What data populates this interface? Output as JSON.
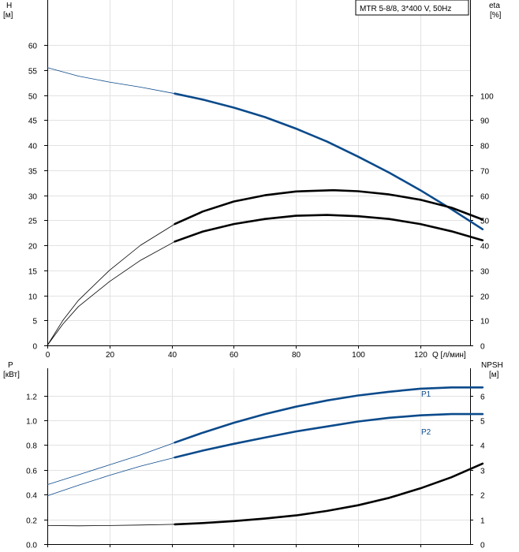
{
  "chart_data": [
    {
      "type": "line",
      "legend_text": "MTR 5-8/8, 3*400 V, 50Hz",
      "legend_placement": "top-right",
      "grid": true,
      "x_axis": {
        "label": "Q [л/мин]",
        "ticks": [
          "0",
          "20",
          "40",
          "60",
          "80",
          "100",
          "120"
        ],
        "range": [
          0,
          136
        ]
      },
      "y_left": {
        "label_line1": "H",
        "label_line2": "[м]",
        "ticks": [
          "0",
          "5",
          "10",
          "15",
          "20",
          "25",
          "30",
          "35",
          "40",
          "45",
          "50",
          "55",
          "60"
        ],
        "range": [
          0,
          69
        ]
      },
      "y_right": {
        "label_line1": "eta",
        "label_line2": "[%]",
        "ticks": [
          "0",
          "10",
          "20",
          "30",
          "40",
          "50",
          "60",
          "70",
          "80",
          "90",
          "100"
        ],
        "range": [
          0,
          138
        ]
      },
      "series": [
        {
          "axis": "left",
          "color": "#0b4a8b",
          "thin_to": 41,
          "x": [
            0,
            10,
            20,
            30,
            41,
            50,
            60,
            70,
            80,
            90,
            100,
            110,
            120,
            130,
            140
          ],
          "y": [
            55.5,
            53.8,
            52.6,
            51.6,
            50.3,
            49.1,
            47.5,
            45.6,
            43.3,
            40.7,
            37.7,
            34.5,
            31.0,
            27.2,
            23.2
          ]
        },
        {
          "axis": "right",
          "color": "#000000",
          "thin_to": 41,
          "x": [
            0,
            5,
            10,
            20,
            30,
            41,
            50,
            60,
            70,
            80,
            92,
            100,
            110,
            120,
            130,
            140
          ],
          "y": [
            0,
            10,
            18,
            30,
            40,
            48.5,
            53.5,
            57.5,
            60,
            61.5,
            62,
            61.6,
            60.3,
            58.2,
            55,
            50.3
          ]
        },
        {
          "axis": "right",
          "color": "#000000",
          "thin_to": 41,
          "x": [
            0,
            5,
            10,
            20,
            30,
            41,
            50,
            60,
            70,
            80,
            90,
            100,
            110,
            120,
            130,
            140
          ],
          "y": [
            0,
            8.5,
            15.5,
            25.5,
            34,
            41.5,
            45.5,
            48.5,
            50.5,
            51.8,
            52.1,
            51.6,
            50.5,
            48.5,
            45.6,
            42
          ]
        }
      ]
    },
    {
      "type": "line",
      "grid": true,
      "y_left": {
        "label_line1": "P",
        "label_line2": "[кВт]",
        "ticks": [
          "0.0",
          "0.2",
          "0.4",
          "0.6",
          "0.8",
          "1.0",
          "1.2"
        ],
        "range": [
          0,
          1.42
        ]
      },
      "y_right": {
        "label_line1": "NPSH",
        "label_line2": "[м]",
        "ticks": [
          "0",
          "1",
          "2",
          "3",
          "4",
          "5",
          "6"
        ],
        "range": [
          0,
          7.1
        ]
      },
      "series": [
        {
          "name": "P1",
          "axis": "left",
          "color": "#0b4a8b",
          "thin_to": 41,
          "x": [
            0,
            10,
            20,
            30,
            41,
            50,
            60,
            70,
            80,
            90,
            100,
            110,
            120,
            130,
            140
          ],
          "y": [
            0.48,
            0.56,
            0.64,
            0.72,
            0.82,
            0.9,
            0.98,
            1.05,
            1.11,
            1.16,
            1.2,
            1.23,
            1.255,
            1.265,
            1.265
          ]
        },
        {
          "name": "P2",
          "axis": "left",
          "color": "#0b4a8b",
          "thin_to": 41,
          "x": [
            0,
            10,
            20,
            30,
            41,
            50,
            60,
            70,
            80,
            90,
            100,
            110,
            120,
            130,
            140
          ],
          "y": [
            0.39,
            0.475,
            0.555,
            0.63,
            0.7,
            0.755,
            0.81,
            0.86,
            0.91,
            0.95,
            0.99,
            1.02,
            1.04,
            1.05,
            1.05
          ]
        },
        {
          "axis": "right",
          "color": "#000000",
          "thin_to": 41,
          "x": [
            0,
            10,
            20,
            30,
            41,
            50,
            60,
            70,
            80,
            90,
            100,
            110,
            120,
            130,
            140
          ],
          "y": [
            0.75,
            0.74,
            0.75,
            0.77,
            0.8,
            0.85,
            0.93,
            1.03,
            1.16,
            1.34,
            1.57,
            1.87,
            2.25,
            2.7,
            3.25
          ]
        }
      ]
    }
  ]
}
